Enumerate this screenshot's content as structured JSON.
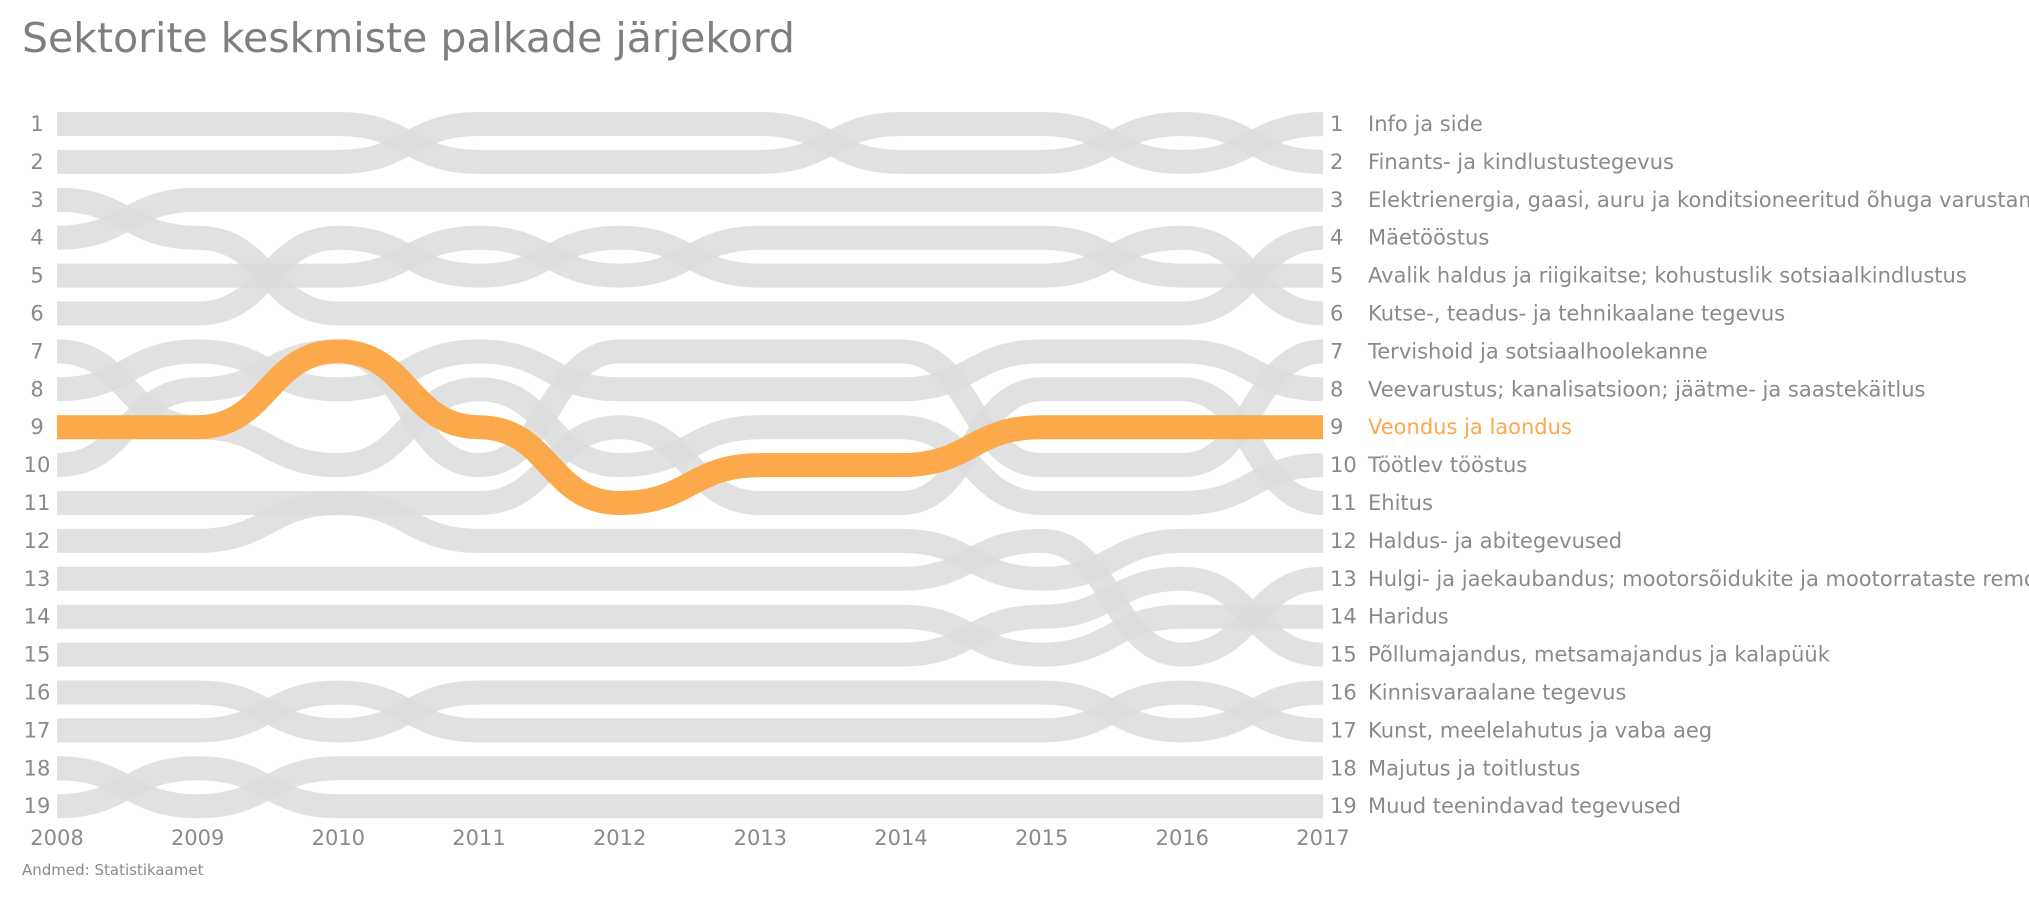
{
  "chart_data": {
    "type": "line",
    "subtype": "bump",
    "title": "Sektorite keskmiste palkade järjekord",
    "source": "Andmed: Statistikaamet",
    "years": [
      "2008",
      "2009",
      "2010",
      "2011",
      "2012",
      "2013",
      "2014",
      "2015",
      "2016",
      "2017"
    ],
    "ranks": [
      "1",
      "2",
      "3",
      "4",
      "5",
      "6",
      "7",
      "8",
      "9",
      "10",
      "11",
      "12",
      "13",
      "14",
      "15",
      "16",
      "17",
      "18",
      "19"
    ],
    "highlight_color": "#fba94a",
    "base_color": "#dcdcdc",
    "highlight": "Veondus ja laondus",
    "series": [
      {
        "name": "Info ja side",
        "values": [
          1,
          1,
          1,
          2,
          2,
          2,
          1,
          1,
          2,
          1
        ]
      },
      {
        "name": "Finants- ja kindlustustegevus",
        "values": [
          2,
          2,
          2,
          1,
          1,
          1,
          2,
          2,
          1,
          2
        ]
      },
      {
        "name": "Elektrienergia, gaasi, auru ja konditsioneeritud õhuga varustamine",
        "values": [
          4,
          3,
          3,
          3,
          3,
          3,
          3,
          3,
          3,
          3
        ]
      },
      {
        "name": "Mäetööstus",
        "values": [
          3,
          4,
          6,
          6,
          6,
          6,
          6,
          6,
          6,
          4
        ]
      },
      {
        "name": "Avalik haldus ja riigikaitse; kohustuslik sotsiaalkindlustus",
        "values": [
          5,
          5,
          5,
          4,
          5,
          4,
          4,
          4,
          5,
          5
        ]
      },
      {
        "name": "Kutse-, teadus- ja tehnikaalane tegevus",
        "values": [
          6,
          6,
          4,
          5,
          4,
          5,
          5,
          5,
          4,
          6
        ]
      },
      {
        "name": "Tervishoid ja sotsiaalhoolekanne",
        "values": [
          10,
          8,
          7,
          10,
          7,
          7,
          7,
          10,
          10,
          7
        ]
      },
      {
        "name": "Veevarustus; kanalisatsioon; jäätme- ja saastekäitlus",
        "values": [
          8,
          7,
          8,
          7,
          8,
          8,
          8,
          7,
          7,
          8
        ]
      },
      {
        "name": "Veondus ja laondus",
        "values": [
          9,
          9,
          7,
          9,
          11,
          10,
          10,
          9,
          9,
          9
        ]
      },
      {
        "name": "Töötlev tööstus",
        "values": [
          7,
          9,
          10,
          8,
          10,
          9,
          9,
          11,
          11,
          10
        ]
      },
      {
        "name": "Ehitus",
        "values": [
          11,
          11,
          11,
          11,
          9,
          11,
          11,
          8,
          8,
          11
        ]
      },
      {
        "name": "Haldus- ja abitegevused",
        "values": [
          12,
          12,
          11,
          12,
          12,
          12,
          12,
          13,
          12,
          12
        ]
      },
      {
        "name": "Hulgi- ja jaekaubandus; mootorsõidukite ja mootorrataste remont",
        "values": [
          13,
          13,
          13,
          13,
          13,
          13,
          13,
          12,
          15,
          13
        ]
      },
      {
        "name": "Haridus",
        "values": [
          14,
          14,
          14,
          14,
          14,
          14,
          14,
          15,
          14,
          14
        ]
      },
      {
        "name": "Põllumajandus, metsamajandus ja kalapüük",
        "values": [
          15,
          15,
          15,
          15,
          15,
          15,
          15,
          14,
          13,
          15
        ]
      },
      {
        "name": "Kinnisvaraalane tegevus",
        "values": [
          16,
          16,
          17,
          16,
          16,
          16,
          16,
          16,
          17,
          16
        ]
      },
      {
        "name": "Kunst, meelelahutus ja vaba aeg",
        "values": [
          17,
          17,
          16,
          17,
          17,
          17,
          17,
          17,
          16,
          17
        ]
      },
      {
        "name": "Majutus ja toitlustus",
        "values": [
          18,
          19,
          18,
          18,
          18,
          18,
          18,
          18,
          18,
          18
        ]
      },
      {
        "name": "Muud teenindavad tegevused",
        "values": [
          19,
          18,
          19,
          19,
          19,
          19,
          19,
          19,
          19,
          19
        ]
      }
    ]
  }
}
